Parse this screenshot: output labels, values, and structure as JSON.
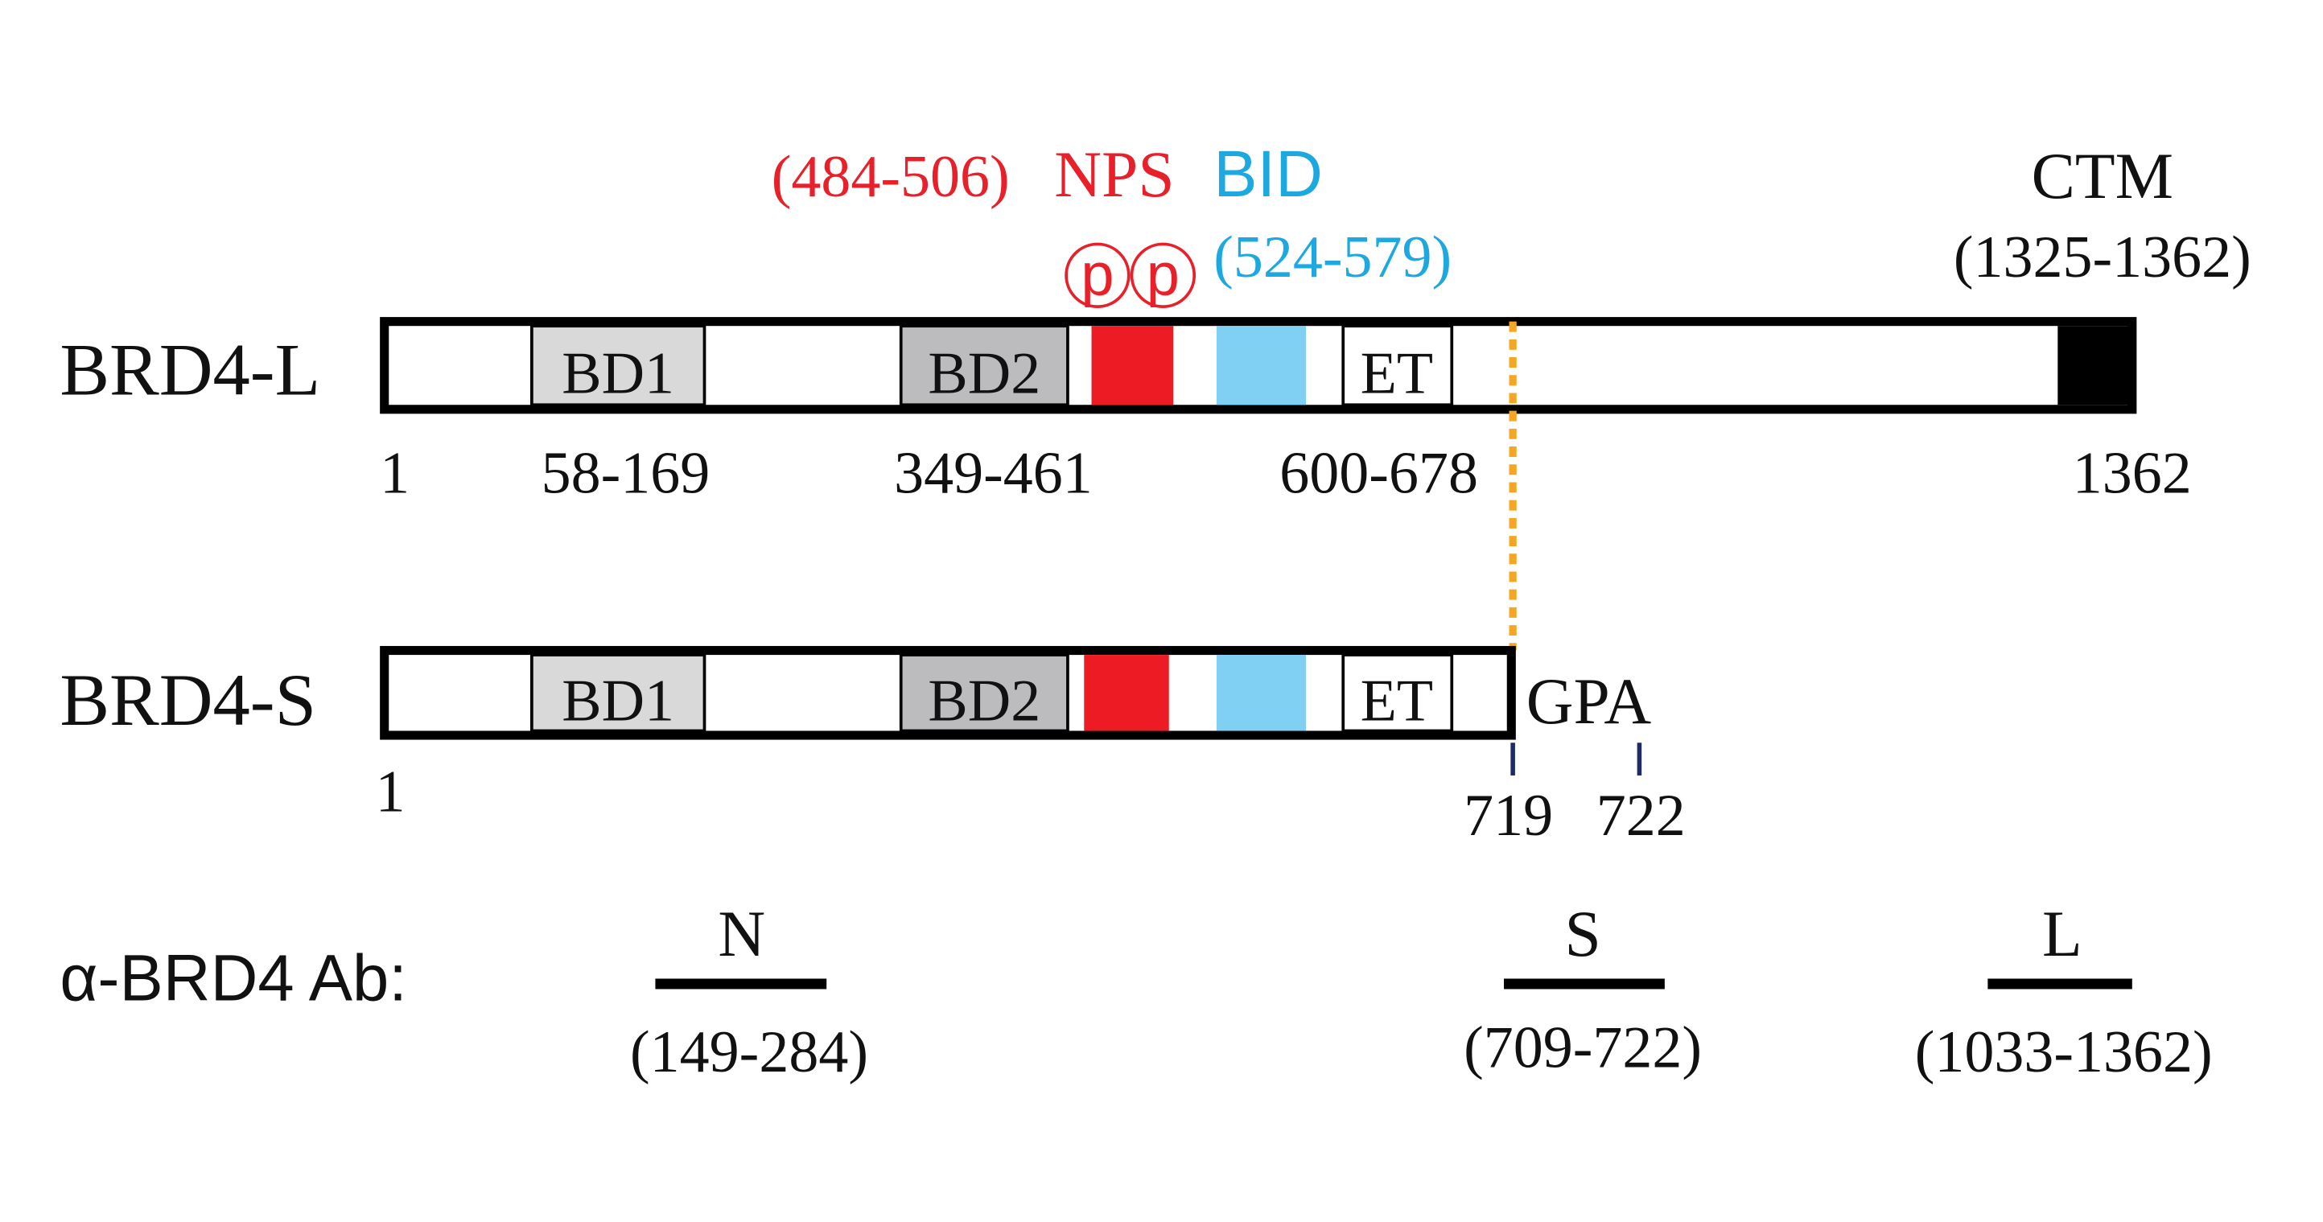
{
  "annotations": {
    "nps_range": "(484-506)",
    "nps_label": "NPS",
    "bid_label": "BID",
    "bid_range": "(524-579)",
    "phospho": [
      "p",
      "p"
    ],
    "ctm_label": "CTM",
    "ctm_range": "(1325-1362)"
  },
  "brd4_l": {
    "label": "BRD4-L",
    "domains": [
      "BD1",
      "BD2",
      "ET"
    ],
    "positions": [
      "1",
      "58-169",
      "349-461",
      "600-678",
      "1362"
    ]
  },
  "brd4_s": {
    "label": "BRD4-S",
    "domains": [
      "BD1",
      "BD2",
      "ET"
    ],
    "tail": "GPA",
    "positions": [
      "1",
      "719",
      "722"
    ]
  },
  "antibodies": {
    "label": "α-BRD4 Ab:",
    "items": [
      {
        "name": "N",
        "range": "(149-284)"
      },
      {
        "name": "S",
        "range": "(709-722)"
      },
      {
        "name": "L",
        "range": "(1033-1362)"
      }
    ]
  }
}
